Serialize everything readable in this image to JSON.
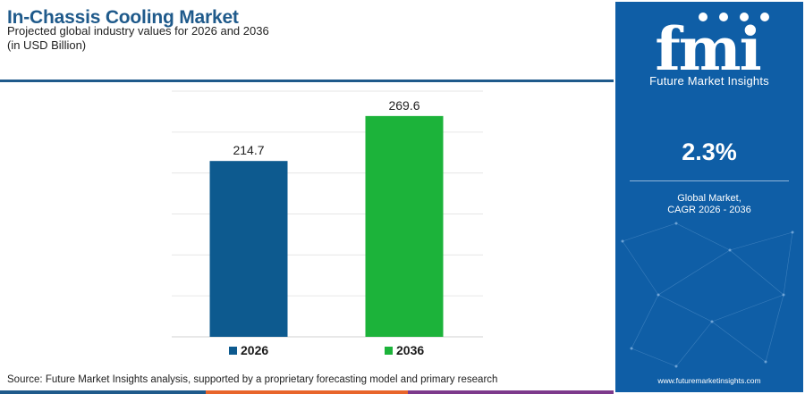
{
  "header": {
    "title": "In-Chassis Cooling Market",
    "subtitle": "Projected global industry values for 2026 and 2036",
    "unit_note": "(in USD Billion)"
  },
  "chart_data": {
    "type": "bar",
    "title": "In-Chassis Cooling Market",
    "subtitle": "Projected global industry values for 2026 and 2036",
    "ylabel": "",
    "xlabel": "",
    "categories": [
      "2026",
      "2036"
    ],
    "values": [
      214.7,
      269.6
    ],
    "value_labels": [
      "214.7",
      "269.6"
    ],
    "colors": [
      "#0d5a8f",
      "#1cb33a"
    ],
    "ylim": [
      0,
      300
    ],
    "grid": true,
    "legend": "bottom"
  },
  "footer": {
    "source": "Source: Future Market Insights analysis, supported by a proprietary forecasting model and primary research",
    "bar_colors": [
      "#1f5a8b",
      "#e8652b",
      "#7d3a8c"
    ]
  },
  "sidebar": {
    "logo_text": "fmi",
    "brand": "Future Market Insights",
    "cagr_value": "2.3%",
    "cagr_label_line1": "Global Market,",
    "cagr_label_line2": "CAGR 2026 - 2036",
    "url": "www.futuremarketinsights.com",
    "background_color": "#0f5ea6"
  }
}
